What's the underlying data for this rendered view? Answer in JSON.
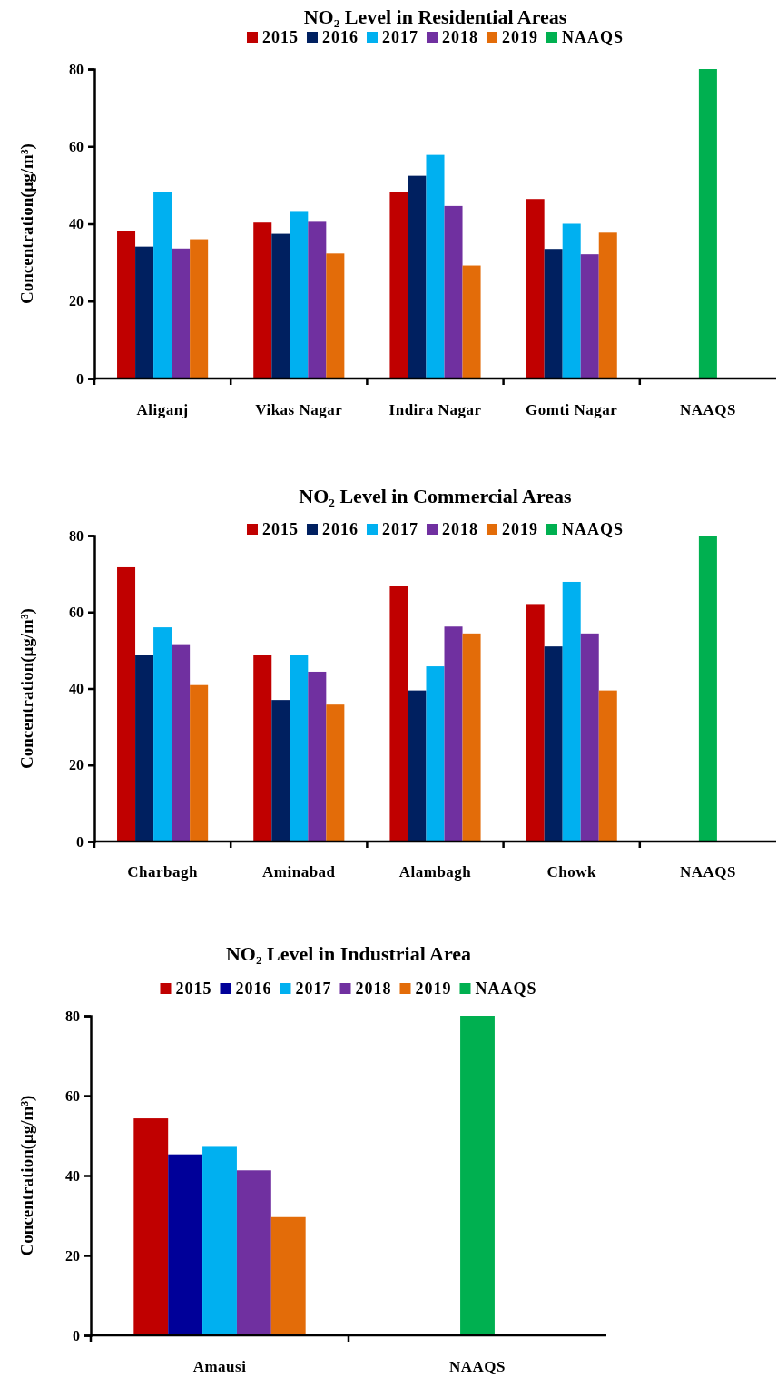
{
  "chart_data": [
    {
      "type": "bar",
      "title": "NO₂ Level in Residential Areas",
      "ylabel": "Concentration(μg/m³)",
      "categories": [
        "Aliganj",
        "Vikas Nagar",
        "Indira Nagar",
        "Gomti Nagar",
        "NAAQS"
      ],
      "ylim": [
        0,
        80
      ],
      "yticks": [
        0,
        20,
        40,
        60,
        80
      ],
      "legend": "top",
      "series": [
        {
          "name": "2015",
          "color": "#c00000",
          "values": [
            38.1,
            40.3,
            48.1,
            46.4,
            null
          ]
        },
        {
          "name": "2016",
          "color": "#002060",
          "values": [
            34.1,
            37.4,
            52.4,
            33.5,
            null
          ]
        },
        {
          "name": "2017",
          "color": "#00b0f0",
          "values": [
            48.2,
            43.3,
            57.8,
            40.0,
            null
          ]
        },
        {
          "name": "2018",
          "color": "#7030a0",
          "values": [
            33.6,
            40.5,
            44.6,
            32.1,
            null
          ]
        },
        {
          "name": "2019",
          "color": "#e36c09",
          "values": [
            36.0,
            32.3,
            29.2,
            37.7,
            null
          ]
        },
        {
          "name": "NAAQS",
          "color": "#00b050",
          "values": [
            null,
            null,
            null,
            null,
            80
          ]
        }
      ]
    },
    {
      "type": "bar",
      "title": "NO₂ Level in Commercial Areas",
      "ylabel": "Concentration(μg/m³)",
      "categories": [
        "Charbagh",
        "Aminabad",
        "Alambagh",
        "Chowk",
        "NAAQS"
      ],
      "ylim": [
        0,
        80
      ],
      "yticks": [
        0,
        20,
        40,
        60,
        80
      ],
      "legend": "top",
      "series": [
        {
          "name": "2015",
          "color": "#c00000",
          "values": [
            71.7,
            48.7,
            66.8,
            62.1,
            null
          ]
        },
        {
          "name": "2016",
          "color": "#002060",
          "values": [
            48.7,
            37.0,
            39.5,
            51.0,
            null
          ]
        },
        {
          "name": "2017",
          "color": "#00b0f0",
          "values": [
            56.0,
            48.7,
            45.8,
            67.9,
            null
          ]
        },
        {
          "name": "2018",
          "color": "#7030a0",
          "values": [
            51.6,
            44.4,
            56.2,
            54.4,
            null
          ]
        },
        {
          "name": "2019",
          "color": "#e36c09",
          "values": [
            40.9,
            35.8,
            54.4,
            39.5,
            null
          ]
        },
        {
          "name": "NAAQS",
          "color": "#00b050",
          "values": [
            null,
            null,
            null,
            null,
            80
          ]
        }
      ]
    },
    {
      "type": "bar",
      "title": "NO₂ Level in Industrial Area",
      "ylabel": "Concentration(μg/m³)",
      "categories": [
        "Amausi",
        "NAAQS"
      ],
      "ylim": [
        0,
        80
      ],
      "yticks": [
        0,
        20,
        40,
        60,
        80
      ],
      "legend": "top",
      "series": [
        {
          "name": "2015",
          "color": "#c00000",
          "values": [
            54.3,
            null
          ]
        },
        {
          "name": "2016",
          "color": "#000099",
          "values": [
            45.3,
            null
          ]
        },
        {
          "name": "2017",
          "color": "#00b0f0",
          "values": [
            47.4,
            null
          ]
        },
        {
          "name": "2018",
          "color": "#7030a0",
          "values": [
            41.3,
            null
          ]
        },
        {
          "name": "2019",
          "color": "#e36c09",
          "values": [
            29.6,
            null
          ]
        },
        {
          "name": "NAAQS",
          "color": "#00b050",
          "values": [
            null,
            80
          ]
        }
      ]
    }
  ]
}
